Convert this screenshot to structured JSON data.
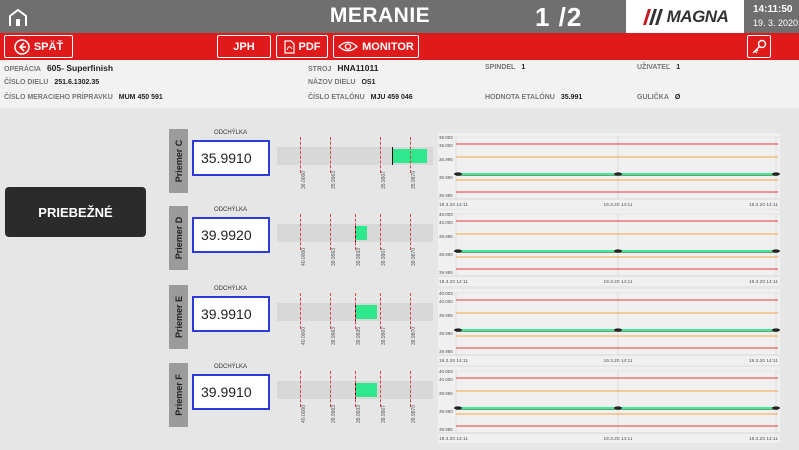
{
  "header": {
    "title": "MERANIE",
    "page": "1 /2",
    "brand": "MAGNA",
    "time": "14:11:50",
    "date": "19. 3. 2020"
  },
  "toolbar": {
    "back": "SPÄŤ",
    "jph": "JPH",
    "pdf": "PDF",
    "monitor": "MONITOR"
  },
  "info": {
    "operacia_label": "OPERÁCIA",
    "operacia_value": "605- Superfinish",
    "dielo_label": "ČÍSLO DIELU",
    "dielo_value": "251.6.1302.35",
    "pripravok_label": "ČÍSLO MERACIEHO PRÍPRAVKU",
    "pripravok_value": "MUM 450 591",
    "stroj_label": "STROJ",
    "stroj_value": "HNA11011",
    "nazov_label": "NÁZOV DIELU",
    "nazov_value": "OS1",
    "etalon_label": "ČÍSLO ETALÓNU",
    "etalon_value": "MJU 459 046",
    "spindel_label": "SPINDEL",
    "spindel_value": "1",
    "hodnota_label": "HODNOTA ETALÓNU",
    "hodnota_value": "35.991",
    "uzivatel_label": "UŽIVATEĽ",
    "uzivatel_value": "1",
    "gulicka_label": "GULIČKA",
    "gulicka_value": "Ø"
  },
  "main_button": "PRIEBEŽNÉ",
  "rows": [
    {
      "name": "Priemer C",
      "deviation_label": "ODCHÝLKA",
      "value": "35.9910",
      "ticks": [
        "36.0000",
        "35.9963",
        "35.9907",
        "35.9870"
      ],
      "fill_from": 0.74,
      "fill_to": 0.96,
      "chart_y_labels": [
        "36.003",
        "36.000",
        "35.995",
        "35.990",
        "35.985"
      ],
      "chart_x_labels": [
        "19.3.20 14:11",
        "19.3.20 14:11",
        "19.3.20 14:11"
      ]
    },
    {
      "name": "Priemer D",
      "deviation_label": "ODCHÝLKA",
      "value": "39.9920",
      "ticks": [
        "40.0000",
        "39.9963",
        "39.9933",
        "39.9907",
        "39.9870"
      ],
      "fill_from": 0.5,
      "fill_to": 0.58,
      "chart_y_labels": [
        "40.003",
        "40.000",
        "39.995",
        "39.990",
        "39.985"
      ],
      "chart_x_labels": [
        "19.3.20 14:11",
        "19.3.20 14:11",
        "19.3.20 14:11"
      ]
    },
    {
      "name": "Priemer E",
      "deviation_label": "ODCHÝLKA",
      "value": "39.9910",
      "ticks": [
        "40.0000",
        "39.9963",
        "39.9935",
        "39.9907",
        "39.9870"
      ],
      "fill_from": 0.5,
      "fill_to": 0.64,
      "chart_y_labels": [
        "40.003",
        "40.000",
        "39.995",
        "39.990",
        "39.985"
      ],
      "chart_x_labels": [
        "19.3.20 14:11",
        "19.3.20 14:11",
        "19.3.20 14:11"
      ]
    },
    {
      "name": "Priemer F",
      "deviation_label": "ODCHÝLKA",
      "value": "39.9910",
      "ticks": [
        "40.0000",
        "39.9963",
        "39.9933",
        "39.9907",
        "39.9870"
      ],
      "fill_from": 0.5,
      "fill_to": 0.64,
      "chart_y_labels": [
        "40.003",
        "40.000",
        "39.995",
        "39.990",
        "39.985"
      ],
      "chart_x_labels": [
        "19.3.20 14:11",
        "19.3.20 14:11",
        "19.3.20 14:11"
      ]
    }
  ],
  "colors": {
    "header_bg": "#6f6f6f",
    "toolbar_red": "#e01a1a",
    "limit_red": "#e83a3a",
    "warn_orange": "#f5a64a",
    "value_green": "#2ee88e",
    "box_border": "#2d3bd6"
  },
  "icons": {
    "home": "home-icon",
    "back": "back-arrow-icon",
    "pdf": "pdf-icon",
    "monitor": "eye-icon",
    "key": "key-icon"
  }
}
